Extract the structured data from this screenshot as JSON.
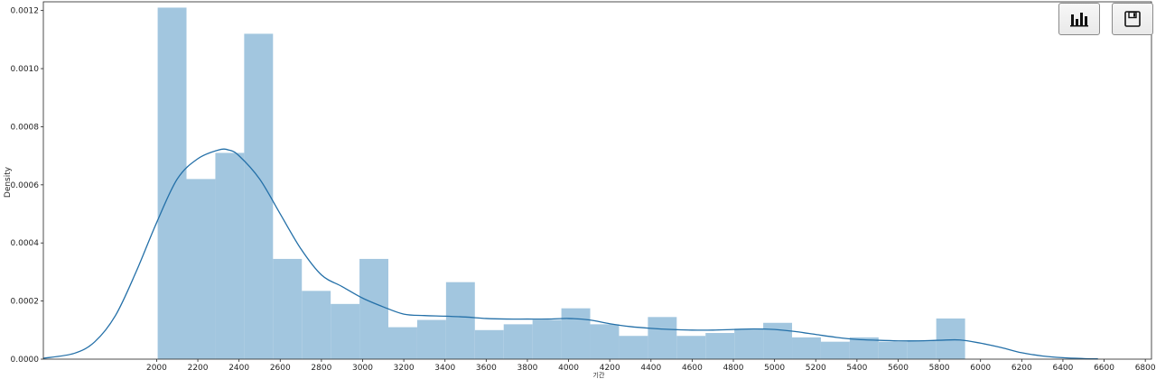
{
  "toolbar": {
    "buttons": [
      {
        "icon": "bar-chart-icon"
      },
      {
        "icon": "save-icon"
      }
    ]
  },
  "chart_data": {
    "type": "bar",
    "title": "",
    "xlabel": "기간",
    "ylabel": "Density",
    "xlim": [
      1450,
      6830
    ],
    "ylim": [
      0,
      0.00123
    ],
    "x_ticks": [
      2000,
      2200,
      2400,
      2600,
      2800,
      3000,
      3200,
      3400,
      3600,
      3800,
      4000,
      4200,
      4400,
      4600,
      4800,
      5000,
      5200,
      5400,
      5600,
      5800,
      6000,
      6200,
      6400,
      6600,
      6800
    ],
    "y_ticks": [
      0,
      0.0002,
      0.0004,
      0.0006,
      0.0008,
      0.001,
      0.0012
    ],
    "y_tick_labels": [
      "0.0000",
      "0.0002",
      "0.0004",
      "0.0006",
      "0.0008",
      "0.0010",
      "0.0012"
    ],
    "bar_color": "#a2c6df",
    "kde_color": "#2470a8",
    "histogram": {
      "bin_start": 2005,
      "bin_width": 140,
      "densities": [
        0.00121,
        0.00062,
        0.00071,
        0.00112,
        0.000345,
        0.000235,
        0.00019,
        0.000345,
        0.00011,
        0.000135,
        0.000265,
        0.0001,
        0.00012,
        0.000135,
        0.000175,
        0.00012,
        8e-05,
        0.000145,
        8e-05,
        9e-05,
        0.000105,
        0.000125,
        7.5e-05,
        6e-05,
        7.5e-05,
        6e-05,
        6.5e-05,
        0.00014
      ]
    },
    "kde": {
      "x": [
        1450,
        1600,
        1700,
        1800,
        1900,
        2000,
        2100,
        2200,
        2300,
        2350,
        2400,
        2500,
        2600,
        2700,
        2800,
        2900,
        3000,
        3100,
        3200,
        3300,
        3400,
        3500,
        3600,
        3700,
        3800,
        3900,
        4000,
        4100,
        4200,
        4300,
        4400,
        4500,
        4600,
        4700,
        4800,
        4900,
        5000,
        5100,
        5200,
        5300,
        5400,
        5500,
        5600,
        5700,
        5800,
        5900,
        6000,
        6100,
        6200,
        6300,
        6400,
        6500,
        6570
      ],
      "y": [
        3e-06,
        2e-05,
        6e-05,
        0.00015,
        0.0003,
        0.00047,
        0.00062,
        0.00069,
        0.00072,
        0.00072,
        0.0007,
        0.00062,
        0.0005,
        0.00038,
        0.00029,
        0.00025,
        0.00021,
        0.00018,
        0.000155,
        0.00015,
        0.000148,
        0.000145,
        0.00014,
        0.000138,
        0.000138,
        0.000138,
        0.00014,
        0.000135,
        0.000122,
        0.000112,
        0.000106,
        0.000102,
        0.0001,
        0.0001,
        0.000102,
        0.000104,
        0.000102,
        9.5e-05,
        8.5e-05,
        7.5e-05,
        6.8e-05,
        6.5e-05,
        6.3e-05,
        6.3e-05,
        6.5e-05,
        6.6e-05,
        5.5e-05,
        4e-05,
        2.2e-05,
        1.1e-05,
        5e-06,
        2e-06,
        1e-06
      ]
    }
  }
}
